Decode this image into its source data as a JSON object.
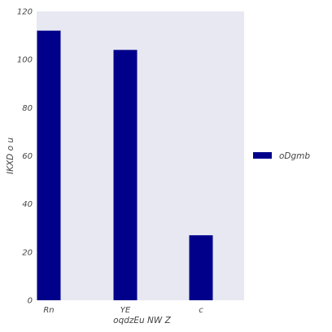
{
  "chart_data": {
    "type": "bar",
    "categories": [
      "Rn",
      "YE",
      "c"
    ],
    "series": [
      {
        "name": "oDgmb",
        "values": [
          112,
          104,
          27
        ],
        "color": "#00008b"
      }
    ],
    "xlabel": "oqdzEu NW Z",
    "ylabel": "IKXD o u",
    "ylim": [
      0,
      120
    ],
    "yticks": [
      0,
      20,
      40,
      60,
      80,
      100,
      120
    ],
    "grid": false,
    "legend": "right",
    "plot_background": "#e8e8f2"
  }
}
